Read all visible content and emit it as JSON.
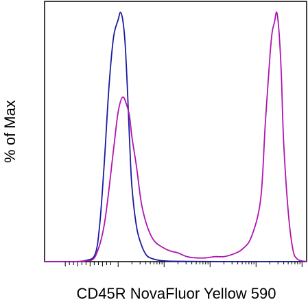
{
  "chart_data": {
    "type": "line",
    "title": "",
    "xlabel": "CD45R NovaFluor Yellow 590",
    "ylabel": "% of Max",
    "x_scale": "log",
    "xlim": [
      0.9,
      6.6
    ],
    "ylim": [
      0,
      100
    ],
    "grid": false,
    "legend": "none",
    "series": [
      {
        "color": "#1a1aa0",
        "x": [
          0.9,
          1.5,
          1.8,
          2.0,
          2.1,
          2.2,
          2.3,
          2.4,
          2.5,
          2.55,
          2.6,
          2.65,
          2.7,
          2.75,
          2.8,
          2.9,
          3.0,
          3.1,
          3.2,
          3.4,
          3.6,
          4.0,
          5.0,
          6.0,
          6.6
        ],
        "y": [
          0,
          0,
          0.5,
          3,
          15,
          40,
          70,
          90,
          97,
          100,
          97,
          88,
          70,
          48,
          30,
          14,
          7,
          3,
          1.5,
          0.5,
          0.2,
          0.1,
          0,
          0,
          0
        ]
      },
      {
        "color": "#b014b0",
        "x": [
          0.9,
          1.5,
          1.8,
          2.0,
          2.2,
          2.4,
          2.5,
          2.6,
          2.7,
          2.75,
          2.8,
          2.9,
          3.0,
          3.1,
          3.2,
          3.3,
          3.4,
          3.6,
          3.8,
          4.0,
          4.2,
          4.4,
          4.6,
          4.8,
          5.0,
          5.2,
          5.4,
          5.6,
          5.7,
          5.8,
          5.85,
          5.9,
          5.95,
          6.0,
          6.05,
          6.1,
          6.2,
          6.3,
          6.4,
          6.6
        ],
        "y": [
          0,
          0,
          0.3,
          2,
          15,
          45,
          60,
          66,
          62,
          58,
          50,
          38,
          24,
          16,
          11,
          8,
          6.5,
          4.5,
          3.5,
          2,
          1.5,
          1.5,
          2,
          2,
          3,
          5,
          10,
          25,
          55,
          82,
          92,
          96,
          100,
          92,
          75,
          48,
          20,
          5,
          1,
          0
        ]
      }
    ]
  }
}
